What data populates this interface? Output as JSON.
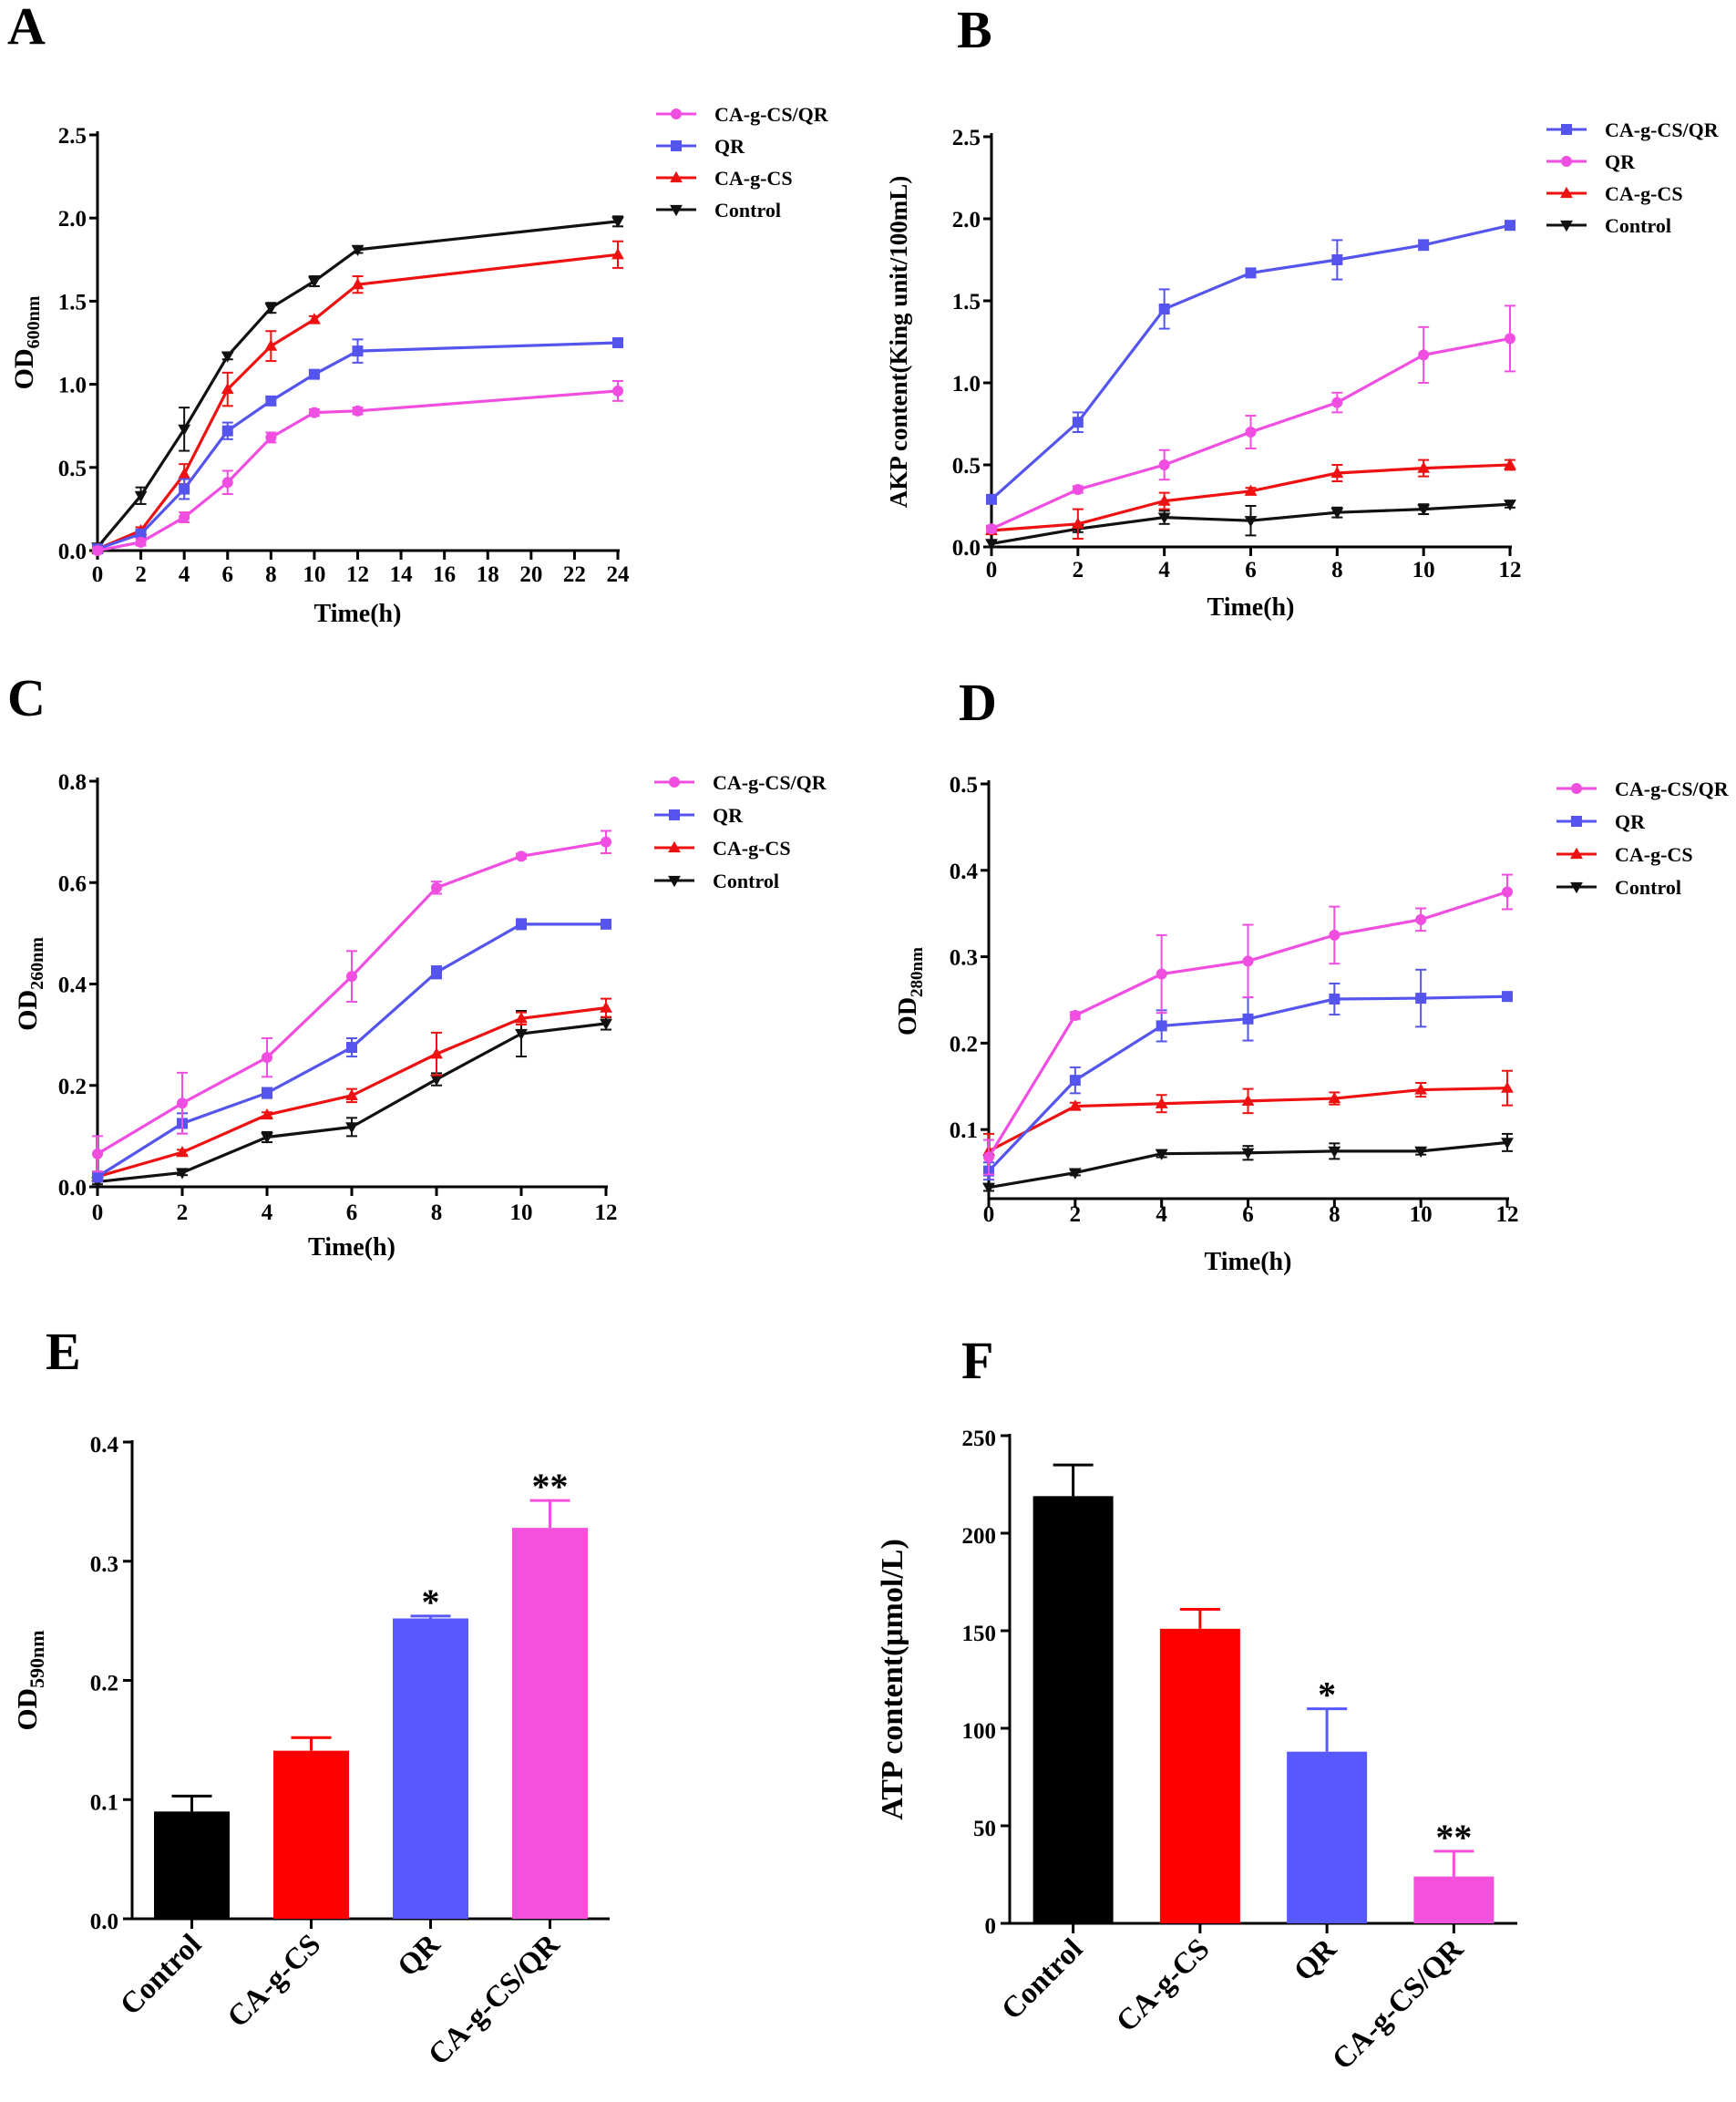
{
  "chart_data": [
    {
      "panel": "A",
      "type": "line",
      "xlabel": "Time(h)",
      "ylabel": "OD",
      "ylabel_sub": "600nm",
      "x_ticks": [
        "0",
        "2",
        "4",
        "6",
        "8",
        "10",
        "12",
        "14",
        "16",
        "18",
        "20",
        "22",
        "24"
      ],
      "y_ticks": [
        "0.0",
        "0.5",
        "1.0",
        "1.5",
        "2.0",
        "2.5"
      ],
      "ylim": [
        0,
        2.5
      ],
      "xlim": [
        0,
        24
      ],
      "x": [
        0,
        2,
        4,
        6,
        8,
        10,
        12,
        24
      ],
      "series": [
        {
          "name": "CA-g-CS/QR",
          "color": "#f04ee0",
          "marker": "circle",
          "values": [
            0.0,
            0.05,
            0.2,
            0.41,
            0.68,
            0.83,
            0.84,
            0.96
          ],
          "errors": [
            0.02,
            0.02,
            0.03,
            0.07,
            0.03,
            0.02,
            0.02,
            0.06
          ]
        },
        {
          "name": "QR",
          "color": "#5555ee",
          "marker": "square",
          "values": [
            0.01,
            0.1,
            0.37,
            0.72,
            0.9,
            1.06,
            1.2,
            1.25
          ],
          "errors": [
            0.02,
            0.02,
            0.06,
            0.05,
            0.02,
            0.02,
            0.07,
            0.02
          ]
        },
        {
          "name": "CA-g-CS",
          "color": "#ee1111",
          "marker": "triangle-up",
          "values": [
            0.01,
            0.12,
            0.46,
            0.97,
            1.23,
            1.39,
            1.6,
            1.78
          ],
          "errors": [
            0.02,
            0.02,
            0.06,
            0.1,
            0.09,
            0.02,
            0.05,
            0.08
          ]
        },
        {
          "name": "Control",
          "color": "#111111",
          "marker": "triangle-down",
          "values": [
            0.02,
            0.33,
            0.73,
            1.17,
            1.46,
            1.62,
            1.81,
            1.98
          ],
          "errors": [
            0.02,
            0.05,
            0.13,
            0.02,
            0.03,
            0.03,
            0.02,
            0.03
          ]
        }
      ]
    },
    {
      "panel": "B",
      "type": "line",
      "xlabel": "Time(h)",
      "ylabel": "AKP content(King unit/100mL)",
      "x_ticks": [
        "0",
        "2",
        "4",
        "6",
        "8",
        "10",
        "12"
      ],
      "y_ticks": [
        "0.0",
        "0.5",
        "1.0",
        "1.5",
        "2.0",
        "2.5"
      ],
      "ylim": [
        0,
        2.5
      ],
      "xlim": [
        0,
        12
      ],
      "x": [
        0,
        2,
        4,
        6,
        8,
        10,
        12
      ],
      "series": [
        {
          "name": "CA-g-CS/QR",
          "color": "#5555ee",
          "marker": "square",
          "values": [
            0.29,
            0.76,
            1.45,
            1.67,
            1.75,
            1.84,
            1.96
          ],
          "errors": [
            0.02,
            0.06,
            0.12,
            0.02,
            0.12,
            0.03,
            0.02
          ]
        },
        {
          "name": "QR",
          "color": "#f04ee0",
          "marker": "circle",
          "values": [
            0.11,
            0.35,
            0.5,
            0.7,
            0.88,
            1.17,
            1.27
          ],
          "errors": [
            0.02,
            0.02,
            0.09,
            0.1,
            0.06,
            0.17,
            0.2
          ]
        },
        {
          "name": "CA-g-CS",
          "color": "#ee1111",
          "marker": "triangle-up",
          "values": [
            0.1,
            0.14,
            0.28,
            0.34,
            0.45,
            0.48,
            0.5
          ],
          "errors": [
            0.02,
            0.09,
            0.05,
            0.02,
            0.05,
            0.05,
            0.03
          ]
        },
        {
          "name": "Control",
          "color": "#111111",
          "marker": "triangle-down",
          "values": [
            0.02,
            0.11,
            0.18,
            0.16,
            0.21,
            0.23,
            0.26
          ],
          "errors": [
            0.02,
            0.02,
            0.04,
            0.09,
            0.03,
            0.03,
            0.02
          ]
        }
      ]
    },
    {
      "panel": "C",
      "type": "line",
      "xlabel": "Time(h)",
      "ylabel": "OD",
      "ylabel_sub": "260nm",
      "x_ticks": [
        "0",
        "2",
        "4",
        "6",
        "8",
        "10",
        "12"
      ],
      "y_ticks": [
        "0.0",
        "0.2",
        "0.4",
        "0.6",
        "0.8"
      ],
      "ylim": [
        0,
        0.8
      ],
      "xlim": [
        0,
        12
      ],
      "x": [
        0,
        2,
        4,
        6,
        8,
        10,
        12
      ],
      "series": [
        {
          "name": "CA-g-CS/QR",
          "color": "#f04ee0",
          "marker": "circle",
          "values": [
            0.065,
            0.165,
            0.255,
            0.415,
            0.59,
            0.652,
            0.68
          ],
          "errors": [
            0.035,
            0.06,
            0.038,
            0.05,
            0.012,
            0.005,
            0.022
          ]
        },
        {
          "name": "QR",
          "color": "#5555ee",
          "marker": "square",
          "values": [
            0.02,
            0.125,
            0.185,
            0.275,
            0.423,
            0.518,
            0.518
          ],
          "errors": [
            0.01,
            0.02,
            0.01,
            0.018,
            0.012,
            0.01,
            0.005
          ]
        },
        {
          "name": "CA-g-CS",
          "color": "#ee1111",
          "marker": "triangle-up",
          "values": [
            0.02,
            0.068,
            0.142,
            0.18,
            0.262,
            0.332,
            0.353
          ],
          "errors": [
            0.01,
            0.005,
            0.005,
            0.013,
            0.042,
            0.012,
            0.018
          ]
        },
        {
          "name": "Control",
          "color": "#111111",
          "marker": "triangle-down",
          "values": [
            0.01,
            0.028,
            0.098,
            0.118,
            0.212,
            0.302,
            0.322
          ],
          "errors": [
            0.005,
            0.005,
            0.01,
            0.018,
            0.012,
            0.045,
            0.012
          ]
        }
      ]
    },
    {
      "panel": "D",
      "type": "line",
      "xlabel": "Time(h)",
      "ylabel": "OD",
      "ylabel_sub": "280nm",
      "x_ticks": [
        "0",
        "2",
        "4",
        "6",
        "8",
        "10",
        "12"
      ],
      "y_ticks": [
        "0.1",
        "0.2",
        "0.3",
        "0.4",
        "0.5"
      ],
      "ylim": [
        0.02,
        0.5
      ],
      "xlim": [
        0,
        12
      ],
      "x": [
        0,
        2,
        4,
        6,
        8,
        10,
        12
      ],
      "series": [
        {
          "name": "CA-g-CS/QR",
          "color": "#f04ee0",
          "marker": "circle",
          "values": [
            0.068,
            0.232,
            0.28,
            0.295,
            0.325,
            0.343,
            0.375
          ],
          "errors": [
            0.02,
            0.004,
            0.045,
            0.042,
            0.033,
            0.013,
            0.02
          ]
        },
        {
          "name": "QR",
          "color": "#5555ee",
          "marker": "square",
          "values": [
            0.052,
            0.157,
            0.22,
            0.228,
            0.251,
            0.252,
            0.254
          ],
          "errors": [
            0.01,
            0.015,
            0.018,
            0.025,
            0.018,
            0.033,
            0.005
          ]
        },
        {
          "name": "CA-g-CS",
          "color": "#ee1111",
          "marker": "triangle-up",
          "values": [
            0.075,
            0.127,
            0.13,
            0.133,
            0.136,
            0.146,
            0.148
          ],
          "errors": [
            0.02,
            0.004,
            0.01,
            0.014,
            0.007,
            0.008,
            0.02
          ]
        },
        {
          "name": "Control",
          "color": "#111111",
          "marker": "triangle-down",
          "values": [
            0.033,
            0.05,
            0.072,
            0.073,
            0.075,
            0.075,
            0.085
          ],
          "errors": [
            0.004,
            0.003,
            0.004,
            0.008,
            0.009,
            0.004,
            0.01
          ]
        }
      ]
    },
    {
      "panel": "E",
      "type": "bar",
      "ylabel": "OD",
      "ylabel_sub": "590nm",
      "y_ticks": [
        "0.0",
        "0.1",
        "0.2",
        "0.3",
        "0.4"
      ],
      "ylim": [
        0,
        0.4
      ],
      "categories": [
        "Control",
        "CA-g-CS",
        "QR",
        "CA-g-CS/QR"
      ],
      "values": [
        0.09,
        0.141,
        0.252,
        0.328
      ],
      "errors": [
        0.013,
        0.011,
        0.002,
        0.023
      ],
      "colors": [
        "#000000",
        "#ff0000",
        "#5858ff",
        "#f44fdd"
      ],
      "annotations": [
        "",
        "",
        "*",
        "**"
      ]
    },
    {
      "panel": "F",
      "type": "bar",
      "ylabel": "ATP content(μmol/L)",
      "y_ticks": [
        "0",
        "50",
        "100",
        "150",
        "200",
        "250"
      ],
      "ylim": [
        0,
        250
      ],
      "categories": [
        "Control",
        "CA-g-CS",
        "QR",
        "CA-g-CS/QR"
      ],
      "values": [
        219,
        151,
        88,
        24
      ],
      "errors": [
        16,
        10,
        22,
        13
      ],
      "colors": [
        "#000000",
        "#ff0000",
        "#5858ff",
        "#f44fdd"
      ],
      "annotations": [
        "",
        "",
        "*",
        "**"
      ]
    }
  ]
}
